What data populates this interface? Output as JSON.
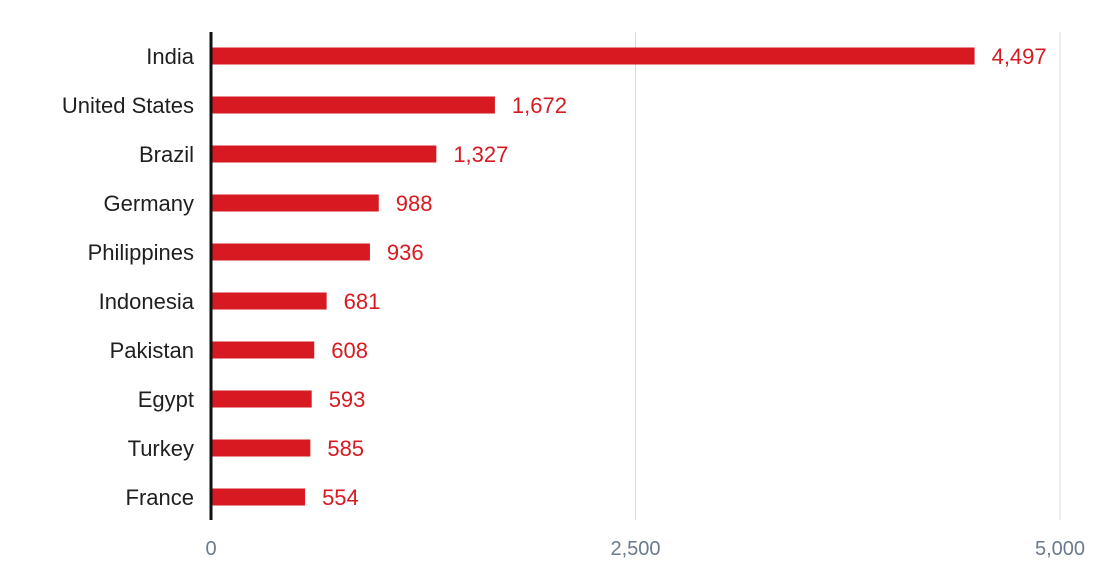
{
  "chart_data": {
    "type": "bar",
    "orientation": "horizontal",
    "categories": [
      "India",
      "United States",
      "Brazil",
      "Germany",
      "Philippines",
      "Indonesia",
      "Pakistan",
      "Egypt",
      "Turkey",
      "France"
    ],
    "values": [
      4497,
      1672,
      1327,
      988,
      936,
      681,
      608,
      593,
      585,
      554
    ],
    "value_labels": [
      "4,497",
      "1,672",
      "1,327",
      "988",
      "936",
      "681",
      "608",
      "593",
      "585",
      "554"
    ],
    "xlim": [
      0,
      5000
    ],
    "x_ticks": [
      0,
      2500,
      5000
    ],
    "x_tick_labels": [
      "0",
      "2,500",
      "5,000"
    ],
    "grid": "vertical",
    "title": "",
    "xlabel": "",
    "ylabel": ""
  },
  "colors": {
    "bar": "#d71a21",
    "value_label": "#d71a21",
    "grid": "#dcdcdc",
    "axis": "#111111",
    "tick_label": "#6b7a8c"
  }
}
